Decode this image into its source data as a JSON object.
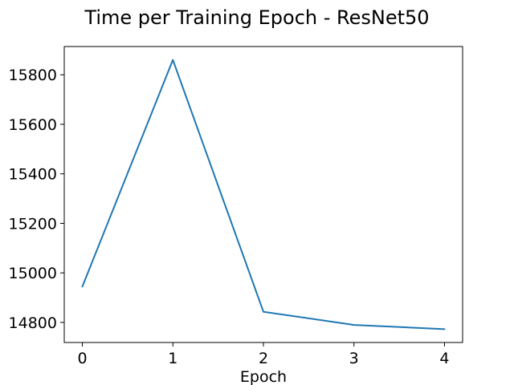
{
  "chart_data": {
    "type": "line",
    "title": "Time per Training Epoch - ResNet50",
    "xlabel": "Epoch",
    "ylabel": "",
    "x": [
      0,
      1,
      2,
      3,
      4
    ],
    "series": [
      {
        "values": [
          14945,
          15860,
          14843,
          14790,
          14773
        ],
        "color": "#1f77b4"
      }
    ],
    "xticks": [
      0,
      1,
      2,
      3,
      4
    ],
    "yticks": [
      14800,
      15000,
      15200,
      15400,
      15600,
      15800
    ],
    "xlim": [
      -0.2,
      4.2
    ],
    "ylim": [
      14719,
      15914
    ],
    "grid": false,
    "legend": "none"
  }
}
